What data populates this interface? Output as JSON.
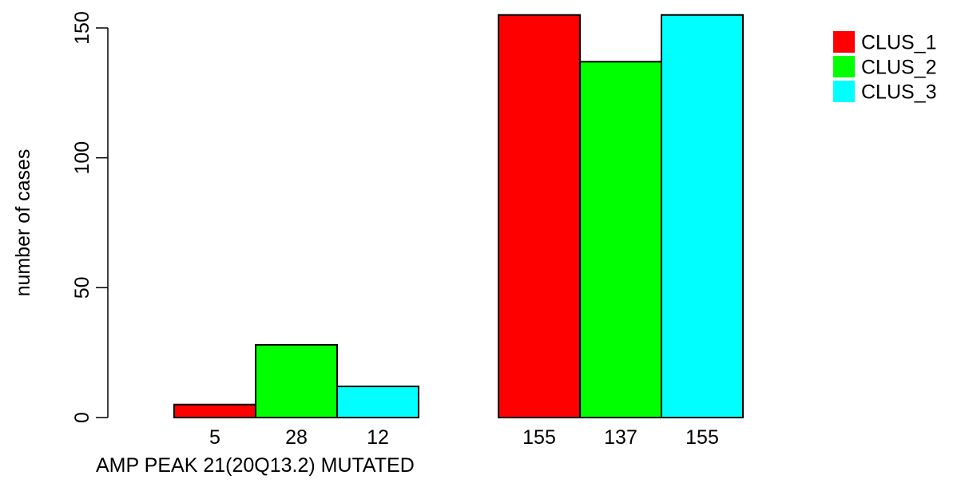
{
  "chart_data": {
    "type": "bar",
    "title": "",
    "xlabel": "AMP PEAK 21(20Q13.2) MUTATED",
    "ylabel": "number of cases",
    "ylim": [
      0,
      150
    ],
    "yticks": [
      0,
      50,
      100,
      150
    ],
    "grid": false,
    "legend_position": "top-right",
    "groups": [
      "",
      ""
    ],
    "series": [
      {
        "name": "CLUS_1",
        "color": "#ff0000",
        "values": [
          5,
          155
        ]
      },
      {
        "name": "CLUS_2",
        "color": "#00ff00",
        "values": [
          28,
          137
        ]
      },
      {
        "name": "CLUS_3",
        "color": "#00ffff",
        "values": [
          12,
          155
        ]
      }
    ]
  }
}
